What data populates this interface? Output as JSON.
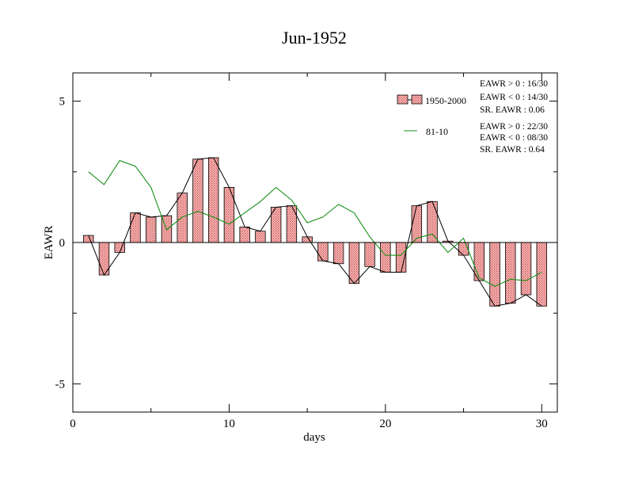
{
  "chart_data": {
    "type": "bar",
    "title": "Jun-1952",
    "xlabel": "days",
    "ylabel": "EAWR",
    "xlim": [
      0,
      31
    ],
    "ylim": [
      -6,
      6
    ],
    "x_ticks": [
      0,
      10,
      20,
      30
    ],
    "y_ticks": [
      -5,
      0,
      5
    ],
    "x": [
      1,
      2,
      3,
      4,
      5,
      6,
      7,
      8,
      9,
      10,
      11,
      12,
      13,
      14,
      15,
      16,
      17,
      18,
      19,
      20,
      21,
      22,
      23,
      24,
      25,
      26,
      27,
      28,
      29,
      30
    ],
    "series": [
      {
        "name": "1950-2000",
        "kind": "bar+line",
        "values": [
          0.25,
          -1.15,
          -0.35,
          1.05,
          0.9,
          0.95,
          1.75,
          2.95,
          3.0,
          1.95,
          0.55,
          0.4,
          1.25,
          1.3,
          0.2,
          -0.65,
          -0.75,
          -1.45,
          -0.85,
          -1.05,
          -1.05,
          1.3,
          1.45,
          0.05,
          -0.45,
          -1.35,
          -2.25,
          -2.15,
          -1.85,
          -2.25
        ],
        "color": "#e58a8a",
        "line_color": "#000000"
      },
      {
        "name": "81-10",
        "kind": "line",
        "values": [
          2.5,
          2.05,
          2.9,
          2.7,
          1.95,
          0.45,
          0.9,
          1.1,
          0.9,
          0.65,
          1.05,
          1.45,
          1.95,
          1.5,
          0.7,
          0.9,
          1.35,
          1.05,
          0.2,
          -0.45,
          -0.45,
          0.15,
          0.3,
          -0.35,
          0.15,
          -1.25,
          -1.55,
          -1.3,
          -1.35,
          -1.05
        ],
        "color": "#1a8f1a"
      }
    ],
    "legend_placement": "top-right",
    "grid": false
  },
  "legend": {
    "items": [
      {
        "label": "1950-2000",
        "stats": [
          "EAWR > 0 : 16/30",
          "EAWR < 0 : 14/30",
          "SR. EAWR :  0.06"
        ]
      },
      {
        "label": "81-10",
        "stats": [
          "EAWR > 0 : 22/30",
          "EAWR < 0 : 08/30",
          "SR. EAWR :  0.64"
        ]
      }
    ]
  }
}
